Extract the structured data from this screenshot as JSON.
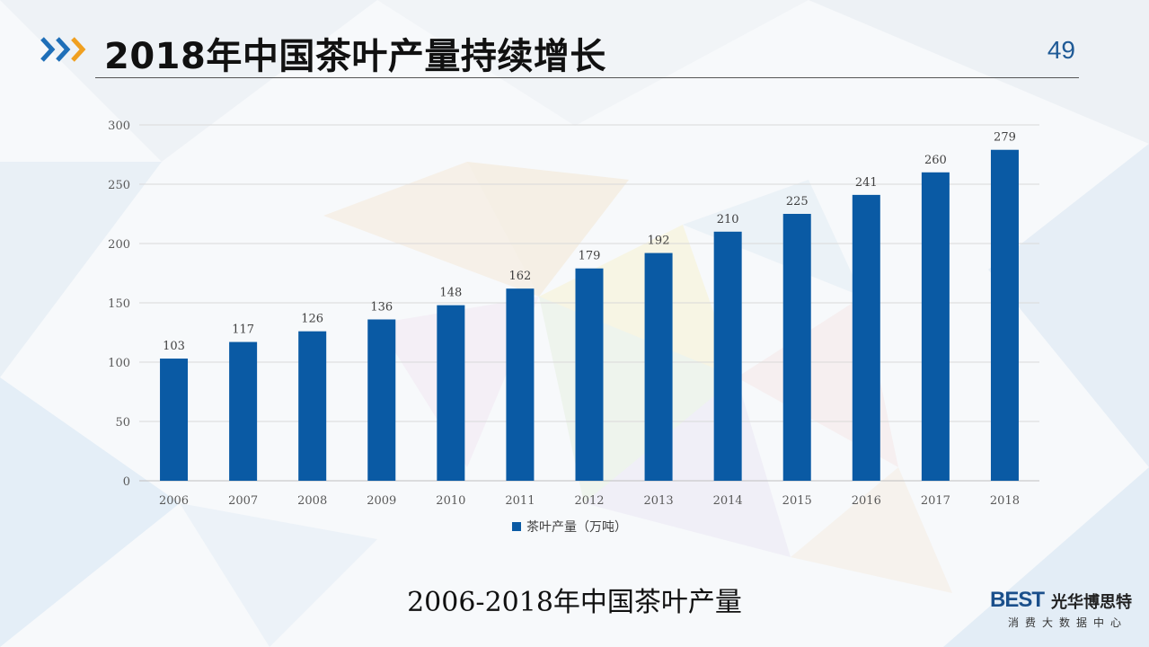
{
  "header": {
    "title": "2018年中国茶叶产量持续增长",
    "page_number": "49"
  },
  "caption": "2006-2018年中国茶叶产量",
  "brand": {
    "mark": "BEST",
    "name": "光华博思特",
    "tagline": "消费大数据中心"
  },
  "colors": {
    "bar": "#0a5aa4",
    "accent_blue": "#1f6fb8",
    "accent_orange": "#f0a020"
  },
  "chart_data": {
    "type": "bar",
    "categories": [
      "2006",
      "2007",
      "2008",
      "2009",
      "2010",
      "2011",
      "2012",
      "2013",
      "2014",
      "2015",
      "2016",
      "2017",
      "2018"
    ],
    "series": [
      {
        "name": "茶叶产量（万吨）",
        "values": [
          103,
          117,
          126,
          136,
          148,
          162,
          179,
          192,
          210,
          225,
          241,
          260,
          279
        ]
      }
    ],
    "title": "",
    "xlabel": "",
    "ylabel": "",
    "ylim": [
      0,
      300
    ],
    "yticks": [
      0,
      50,
      100,
      150,
      200,
      250,
      300
    ],
    "grid": true,
    "legend": "bottom"
  }
}
